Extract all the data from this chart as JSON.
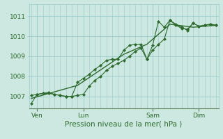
{
  "background_color": "#cce8e0",
  "grid_color": "#99cccc",
  "line_color": "#2d6a2d",
  "marker_color": "#2d6a2d",
  "xlabel": "Pression niveau de la mer( hPa )",
  "ylim": [
    1006.4,
    1011.6
  ],
  "yticks": [
    1007,
    1008,
    1009,
    1010,
    1011
  ],
  "xlim": [
    -0.2,
    16.2
  ],
  "x_tick_positions": [
    0.5,
    4.5,
    10.5,
    14.5
  ],
  "x_tick_labels": [
    "Ven",
    "Lun",
    "Sam",
    "Dim"
  ],
  "series1_x": [
    0,
    0.5,
    1.0,
    1.5,
    2.0,
    2.5,
    3.0,
    3.5,
    4.0,
    4.5,
    5.0,
    5.5,
    6.0,
    6.5,
    7.0,
    7.5,
    8.0,
    8.5,
    9.0,
    9.5,
    10.0,
    10.5,
    11.0,
    11.5,
    12.0,
    12.5,
    13.0,
    13.5,
    14.0,
    14.5,
    15.0,
    15.5,
    16.0
  ],
  "values1": [
    1006.65,
    1007.1,
    1007.15,
    1007.2,
    1007.1,
    1007.05,
    1007.0,
    1007.0,
    1007.05,
    1007.1,
    1007.5,
    1007.8,
    1008.0,
    1008.3,
    1008.5,
    1008.65,
    1008.8,
    1009.0,
    1009.25,
    1009.4,
    1008.85,
    1009.3,
    1009.6,
    1009.85,
    1010.8,
    1010.6,
    1010.45,
    1010.3,
    1010.65,
    1010.5,
    1010.55,
    1010.6,
    1010.55
  ],
  "series2_x": [
    0,
    0.5,
    1.0,
    1.5,
    2.0,
    2.5,
    3.0,
    3.5,
    4.0,
    4.5,
    5.0,
    5.5,
    6.0,
    6.5,
    7.0,
    7.5,
    8.0,
    8.5,
    9.0,
    9.5,
    10.0,
    10.5,
    11.0,
    11.5,
    12.0,
    12.5,
    13.0,
    13.5,
    14.0,
    14.5,
    15.0,
    15.5,
    16.0
  ],
  "values2": [
    1007.05,
    1007.1,
    1007.15,
    1007.15,
    1007.1,
    1007.05,
    1007.0,
    1007.0,
    1007.7,
    1007.9,
    1008.1,
    1008.35,
    1008.55,
    1008.8,
    1008.85,
    1008.85,
    1009.3,
    1009.55,
    1009.6,
    1009.6,
    1008.85,
    1009.55,
    1010.75,
    1010.45,
    1010.8,
    1010.55,
    1010.4,
    1010.35,
    1010.65,
    1010.5,
    1010.55,
    1010.6,
    1010.55
  ],
  "series3_x": [
    0,
    4,
    8,
    10,
    12,
    14,
    16
  ],
  "values3": [
    1006.9,
    1007.55,
    1009.1,
    1009.6,
    1010.6,
    1010.45,
    1010.55
  ]
}
